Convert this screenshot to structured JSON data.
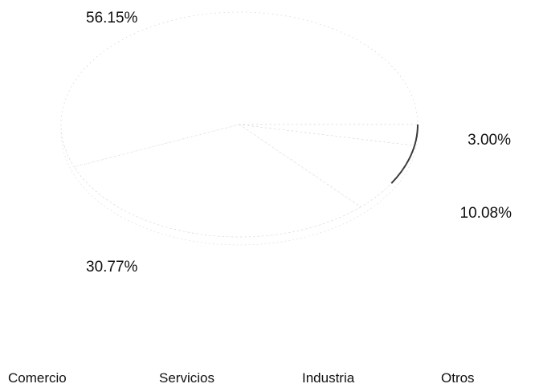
{
  "chart_data": {
    "type": "pie",
    "title": "",
    "categories": [
      "Comercio",
      "Servicios",
      "Industria",
      "Otros"
    ],
    "values": [
      56.15,
      30.77,
      10.08,
      3.0
    ],
    "value_labels": [
      "56.15%",
      "30.77%",
      "10.08%",
      "3.00%"
    ],
    "legend": {
      "placement": "bottom",
      "entries": [
        "Comercio",
        "Servicios",
        "Industria",
        "Otros"
      ]
    },
    "style": {
      "three_d": true,
      "exploded": false,
      "slice_colors": [
        "#ffffff",
        "#ffffff",
        "#ffffff",
        "#ffffff"
      ],
      "edge_color": "#3a3a3a",
      "text_color": "#111111"
    }
  }
}
